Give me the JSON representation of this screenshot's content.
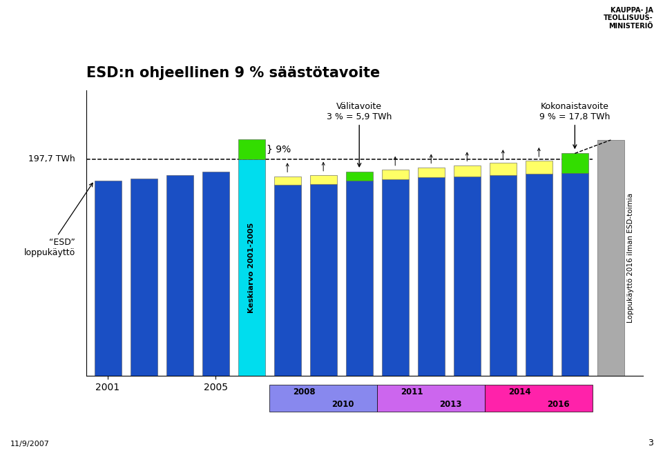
{
  "chart_data": {
    "type": "bar",
    "title": "ESD:n ohjeellinen 9 % säästötavoite",
    "categories": [
      "2001",
      null,
      null,
      "2005",
      null,
      null,
      null,
      null,
      null,
      null,
      null,
      null,
      null,
      null,
      null
    ],
    "stacked": true,
    "series": [
      {
        "values": [
          178,
          180,
          183,
          186,
          197.7,
          174,
          175,
          178,
          179,
          181,
          182,
          183,
          184,
          185,
          215
        ],
        "colors": [
          "#1A4FC4",
          "#1A4FC4",
          "#1A4FC4",
          "#1A4FC4",
          "#00DDEE",
          "#1A4FC4",
          "#1A4FC4",
          "#1A4FC4",
          "#1A4FC4",
          "#1A4FC4",
          "#1A4FC4",
          "#1A4FC4",
          "#1A4FC4",
          "#1A4FC4",
          "#AAAAAA"
        ]
      },
      {
        "values": [
          null,
          null,
          null,
          null,
          17.8,
          8,
          8,
          8,
          9,
          9,
          10,
          11,
          12,
          17.8,
          null
        ],
        "colors": [
          null,
          null,
          null,
          null,
          "#33DD00",
          "#FFFF66",
          "#FFFF66",
          "#33DD00",
          "#FFFF66",
          "#FFFF66",
          "#FFFF66",
          "#FFFF66",
          "#FFFF66",
          "#33DD00",
          null
        ]
      }
    ],
    "ylim": [
      0,
      260
    ],
    "tick_labels": "x",
    "reference_line": {
      "value": 197.7,
      "label": "197,7 TWh"
    },
    "baseline_label": "“ESD”\nloppukäyttö",
    "average_label": "Keskiarvo 2001-2005",
    "percent_label": "} 9%",
    "interim_target": "Välitavoite\n3 % = 5,9 TWh",
    "total_target": "Kokonaistavoite\n9 % = 17,8 TWh",
    "counterfactual_label": "Loppukäyttö 2016 ilman ESD-toimia",
    "periods": [
      {
        "labels": [
          "2008",
          "2010"
        ],
        "color": "#8888EE"
      },
      {
        "labels": [
          "2011",
          "2013"
        ],
        "color": "#CC66EE"
      },
      {
        "labels": [
          "2014",
          "2016"
        ],
        "color": "#FF22AA"
      }
    ],
    "date": "11/9/2007",
    "page": "3",
    "organization": "KAUPPA- JA\nTEOLLISUUS-\nMINISTERIÖ"
  }
}
